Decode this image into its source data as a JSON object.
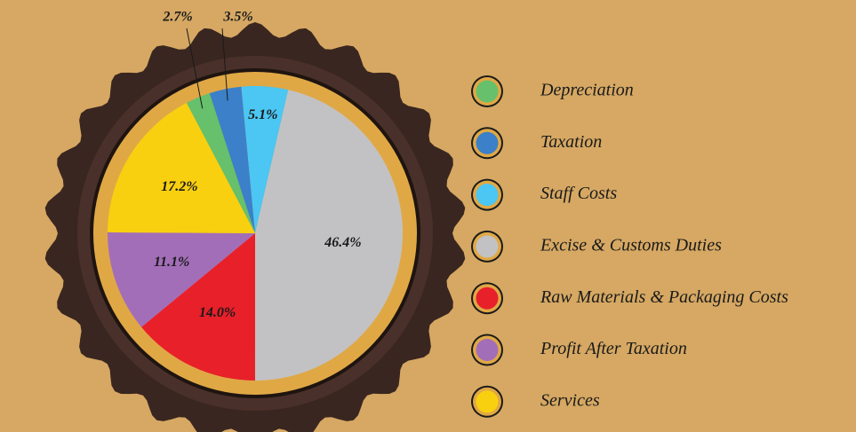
{
  "chart_data": {
    "type": "pie",
    "categories": [
      "Depreciation",
      "Taxation",
      "Staff Costs",
      "Excise & Customs Duties",
      "Raw Materials & Packaging Costs",
      "Profit After Taxation",
      "Services"
    ],
    "values": [
      2.7,
      3.5,
      5.1,
      46.4,
      14.0,
      11.1,
      17.2
    ],
    "value_labels": [
      "2.7%",
      "3.5%",
      "5.1%",
      "46.4%",
      "14.0%",
      "11.1%",
      "17.2%"
    ],
    "colors": [
      "#66c06c",
      "#3b80c8",
      "#4cc6f2",
      "#c2c2c4",
      "#e8202a",
      "#a36eb8",
      "#f8d010"
    ],
    "legend": "right"
  }
}
